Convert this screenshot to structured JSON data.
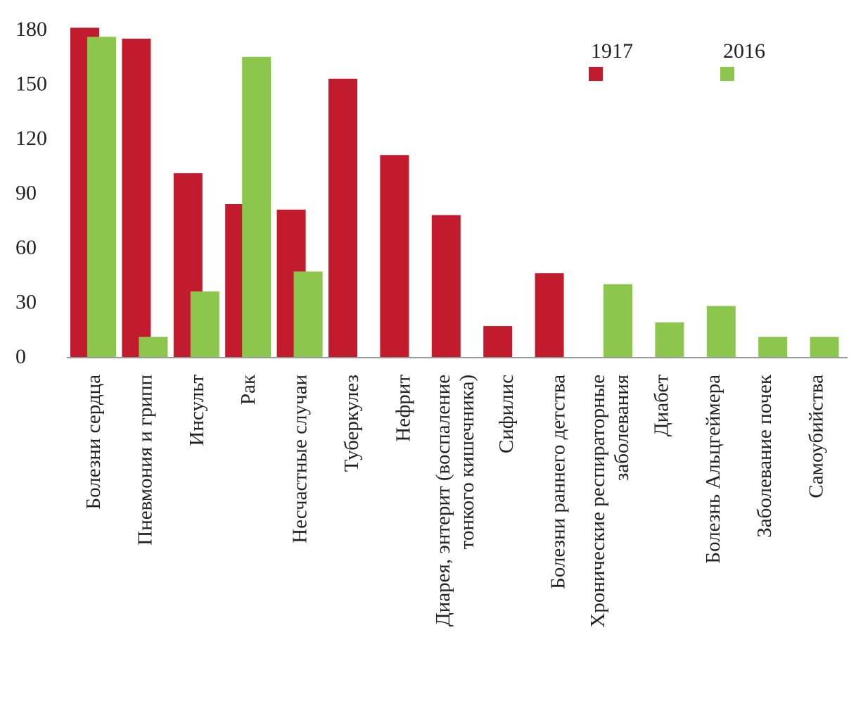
{
  "colors": {
    "series_1917": "#c21b2e",
    "series_2016": "#8dc64d",
    "axis": "#9a9a9a"
  },
  "chart_data": {
    "type": "bar",
    "title": "",
    "xlabel": "",
    "ylabel": "",
    "ylim": [
      0,
      180
    ],
    "yticks": [
      0,
      30,
      60,
      90,
      120,
      150,
      180
    ],
    "grid": false,
    "legend_position": "top-right",
    "categories": [
      [
        "Болезни сердца"
      ],
      [
        "Пневмония и грипп"
      ],
      [
        "Инсульт"
      ],
      [
        "Рак"
      ],
      [
        "Несчастные случаи"
      ],
      [
        "Туберкулез"
      ],
      [
        "Нефрит"
      ],
      [
        "Диарея,  энтерит (воспаление",
        "тонкого кишечника)"
      ],
      [
        "Сифилис"
      ],
      [
        "Болезни раннего детства"
      ],
      [
        "Хронические респираторные",
        "заболевания"
      ],
      [
        "Диабет"
      ],
      [
        "Болезнь Альцгеймера"
      ],
      [
        "Заболевание почек"
      ],
      [
        "Самоубийства"
      ]
    ],
    "series": [
      {
        "name": "1917",
        "values": [
          181,
          175,
          101,
          84,
          81,
          153,
          111,
          78,
          17,
          46,
          0,
          0,
          0,
          0,
          0
        ]
      },
      {
        "name": "2016",
        "values": [
          176,
          11,
          36,
          165,
          47,
          0,
          0,
          0,
          0,
          0,
          40,
          19,
          28,
          11,
          11
        ]
      }
    ]
  }
}
